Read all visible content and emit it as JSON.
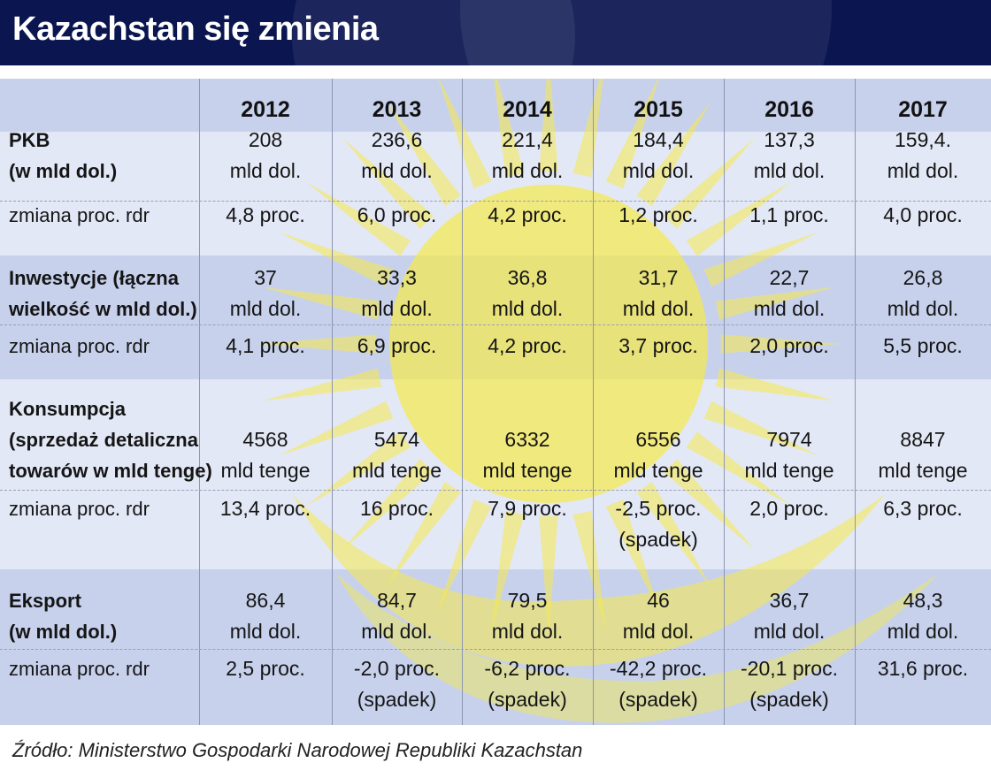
{
  "title": "Kazachstan się zmienia",
  "source": "Źródło: Ministerstwo Gospodarki Narodowej Republiki Kazachstan",
  "colors": {
    "title_bg": "#0b1650",
    "band_dark": "#c7d1ec",
    "band_light": "#e3e8f6",
    "sun": "#f5e94a"
  },
  "chart_data": {
    "type": "table",
    "title": "Kazachstan się zmienia",
    "columns": [
      "2012",
      "2013",
      "2014",
      "2015",
      "2016",
      "2017"
    ],
    "rows": [
      {
        "label": [
          "PKB",
          "(w mld dol.)"
        ],
        "values": [
          [
            "208",
            "mld dol."
          ],
          [
            "236,6",
            "mld dol."
          ],
          [
            "221,4",
            "mld dol."
          ],
          [
            "184,4",
            "mld dol."
          ],
          [
            "137,3",
            "mld dol."
          ],
          [
            "159,4.",
            "mld dol."
          ]
        ],
        "change_label": "zmiana proc. rdr",
        "changes": [
          [
            "4,8 proc."
          ],
          [
            "6,0 proc."
          ],
          [
            "4,2 proc."
          ],
          [
            "1,2 proc."
          ],
          [
            "1,1 proc."
          ],
          [
            "4,0 proc."
          ]
        ]
      },
      {
        "label": [
          "Inwestycje (łączna",
          "wielkość w mld dol.)"
        ],
        "values": [
          [
            "37",
            "mld dol."
          ],
          [
            "33,3",
            "mld dol."
          ],
          [
            "36,8",
            "mld dol."
          ],
          [
            "31,7",
            "mld dol."
          ],
          [
            "22,7",
            "mld dol."
          ],
          [
            "26,8",
            "mld dol."
          ]
        ],
        "change_label": "zmiana proc. rdr",
        "changes": [
          [
            "4,1 proc."
          ],
          [
            "6,9 proc."
          ],
          [
            "4,2 proc."
          ],
          [
            "3,7 proc."
          ],
          [
            "2,0 proc."
          ],
          [
            "5,5 proc."
          ]
        ]
      },
      {
        "label": [
          "Konsumpcja",
          "(sprzedaż detaliczna",
          "towarów w mld tenge)"
        ],
        "values": [
          [
            "4568",
            "mld tenge"
          ],
          [
            "5474",
            "mld tenge"
          ],
          [
            "6332",
            "mld tenge"
          ],
          [
            "6556",
            "mld tenge"
          ],
          [
            "7974",
            "mld tenge"
          ],
          [
            "8847",
            "mld tenge"
          ]
        ],
        "change_label": "zmiana proc. rdr",
        "changes": [
          [
            "13,4 proc."
          ],
          [
            "16 proc."
          ],
          [
            "7,9 proc."
          ],
          [
            "-2,5 proc.",
            "(spadek)"
          ],
          [
            "2,0 proc."
          ],
          [
            "6,3 proc."
          ]
        ]
      },
      {
        "label": [
          "Eksport",
          "(w mld dol.)"
        ],
        "values": [
          [
            "86,4",
            "mld dol."
          ],
          [
            "84,7",
            "mld dol."
          ],
          [
            "79,5",
            "mld dol."
          ],
          [
            "46",
            "mld dol."
          ],
          [
            "36,7",
            "mld dol."
          ],
          [
            "48,3",
            "mld dol."
          ]
        ],
        "change_label": "zmiana proc. rdr",
        "changes": [
          [
            "2,5 proc."
          ],
          [
            "-2,0 proc.",
            "(spadek)"
          ],
          [
            "-6,2 proc.",
            "(spadek)"
          ],
          [
            "-42,2 proc.",
            "(spadek)"
          ],
          [
            "-20,1 proc.",
            "(spadek)"
          ],
          [
            "31,6 proc."
          ]
        ]
      }
    ]
  }
}
